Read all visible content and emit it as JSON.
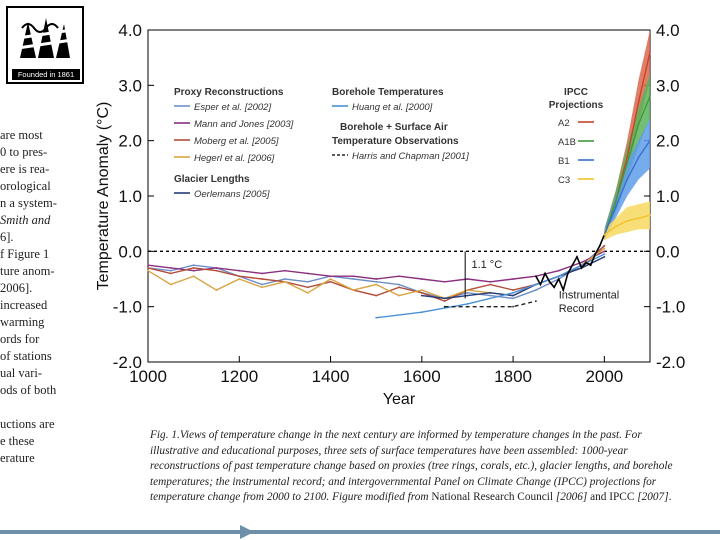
{
  "logo": {
    "caption": "Founded in 1861",
    "icon": "weather-vane-icon"
  },
  "left_text": {
    "lines": [
      {
        "text": "are most",
        "italic": false
      },
      {
        "text": "0 to pres-",
        "italic": false
      },
      {
        "text": "ere is rea-",
        "italic": false
      },
      {
        "text": "orological",
        "italic": false
      },
      {
        "text": "n a system-",
        "italic": false
      },
      {
        "text": "Smith and",
        "italic": true
      },
      {
        "text": "6].",
        "italic": false
      },
      {
        "text": "f Figure 1",
        "italic": false
      },
      {
        "text": "ture anom-",
        "italic": false
      },
      {
        "text": "2006].",
        "italic": false
      },
      {
        "text": "increased",
        "italic": false
      },
      {
        "text": "warming",
        "italic": false
      },
      {
        "text": "ords for",
        "italic": false
      },
      {
        "text": "of stations",
        "italic": false
      },
      {
        "text": "ual vari-",
        "italic": false
      },
      {
        "text": "ods of both",
        "italic": false
      },
      {
        "text": "",
        "italic": false
      },
      {
        "text": "uctions are",
        "italic": false
      },
      {
        "text": "e these",
        "italic": false
      },
      {
        "text": "erature",
        "italic": false
      }
    ]
  },
  "chart_data": {
    "type": "line",
    "xlabel": "Year",
    "ylabel": "Temperature Anomaly (°C)",
    "xlim": [
      1000,
      2100
    ],
    "ylim": [
      -2.0,
      4.0
    ],
    "x_ticks": [
      1000,
      1200,
      1400,
      1600,
      1800,
      2000
    ],
    "x_tick_labels": [
      "1000",
      "1200",
      "1400",
      "1600",
      "1800",
      "2000"
    ],
    "y_ticks": [
      4.0,
      3.0,
      2.0,
      1.0,
      0.0,
      -1.0,
      -2.0
    ],
    "y_tick_labels": [
      "4.0",
      "3.0",
      "2.0",
      "1.0",
      "0.0",
      "-1.0",
      "-2.0"
    ],
    "zero_line": true,
    "vertical_marker_x": 2100,
    "legend_groups": [
      {
        "title": "Proxy Reconstructions",
        "entries": [
          {
            "label": "Esper et al. [2002]",
            "color": "#6d8fc7"
          },
          {
            "label": "Mann and Jones [2003]",
            "color": "#8b2f7f"
          },
          {
            "label": "Moberg et al. [2005]",
            "color": "#b34d3a"
          },
          {
            "label": "Hegerl et al. [2006]",
            "color": "#d9a441"
          }
        ]
      },
      {
        "title": "Glacier Lengths",
        "entries": [
          {
            "label": "Oerlemans [2005]",
            "color": "#253d7a"
          }
        ]
      },
      {
        "title": "Borehole Temperatures",
        "entries": [
          {
            "label": "Huang et al. [2000]",
            "color": "#4a90d9"
          }
        ]
      },
      {
        "title": "Borehole + Surface Air Temperature Observations",
        "title_lines": [
          "Borehole + Surface Air",
          "Temperature Observations"
        ],
        "entries": [
          {
            "label": "Harris and Chapman [2001]",
            "color": "#222222",
            "dashed": true
          }
        ]
      },
      {
        "title": "IPCC Projections",
        "title_lines": [
          "IPCC",
          "Projections"
        ],
        "entries": [
          {
            "label": "A2",
            "color": "#c8442a"
          },
          {
            "label": "A1B",
            "color": "#3f9a3c"
          },
          {
            "label": "B1",
            "color": "#3b6fd1"
          },
          {
            "label": "C3",
            "color": "#f2c230"
          }
        ]
      }
    ],
    "annotations": [
      {
        "text": "1.1 °C",
        "x": 1700,
        "y": -0.15
      },
      {
        "text": "Instrumental Record",
        "lines": [
          "Instrumental",
          "Record"
        ],
        "x": 1890,
        "y": -0.75
      }
    ],
    "series": [
      {
        "name": "Esper et al. [2002]",
        "color": "#6d8fc7",
        "x": [
          1000,
          1050,
          1100,
          1150,
          1200,
          1250,
          1300,
          1350,
          1400,
          1450,
          1500,
          1550,
          1600,
          1650,
          1700,
          1750,
          1800,
          1850,
          1900,
          1950,
          2000
        ],
        "y": [
          -0.3,
          -0.35,
          -0.25,
          -0.3,
          -0.45,
          -0.6,
          -0.5,
          -0.55,
          -0.45,
          -0.5,
          -0.55,
          -0.6,
          -0.75,
          -0.85,
          -0.75,
          -0.8,
          -0.85,
          -0.7,
          -0.5,
          -0.25,
          0.1
        ]
      },
      {
        "name": "Mann and Jones [2003]",
        "color": "#8b2f7f",
        "x": [
          1000,
          1050,
          1100,
          1150,
          1200,
          1250,
          1300,
          1350,
          1400,
          1450,
          1500,
          1550,
          1600,
          1650,
          1700,
          1750,
          1800,
          1850,
          1900,
          1950,
          2000
        ],
        "y": [
          -0.25,
          -0.3,
          -0.35,
          -0.3,
          -0.35,
          -0.4,
          -0.35,
          -0.4,
          -0.45,
          -0.45,
          -0.5,
          -0.45,
          -0.5,
          -0.55,
          -0.5,
          -0.55,
          -0.5,
          -0.45,
          -0.35,
          -0.2,
          0.0
        ]
      },
      {
        "name": "Moberg et al. [2005]",
        "color": "#b34d3a",
        "x": [
          1000,
          1050,
          1100,
          1150,
          1200,
          1250,
          1300,
          1350,
          1400,
          1450,
          1500,
          1550,
          1600,
          1650,
          1700,
          1750,
          1800,
          1850,
          1900,
          1950,
          2000
        ],
        "y": [
          -0.3,
          -0.4,
          -0.3,
          -0.35,
          -0.45,
          -0.5,
          -0.55,
          -0.65,
          -0.55,
          -0.7,
          -0.8,
          -0.65,
          -0.75,
          -0.9,
          -0.7,
          -0.6,
          -0.7,
          -0.6,
          -0.45,
          -0.3,
          0.1
        ]
      },
      {
        "name": "Hegerl et al. [2006]",
        "color": "#d9a441",
        "x": [
          1000,
          1050,
          1100,
          1150,
          1200,
          1250,
          1300,
          1350,
          1400,
          1450,
          1500,
          1550,
          1600,
          1650,
          1700,
          1750,
          1800,
          1850,
          1900,
          1950,
          2000
        ],
        "y": [
          -0.35,
          -0.6,
          -0.45,
          -0.7,
          -0.5,
          -0.65,
          -0.55,
          -0.75,
          -0.5,
          -0.7,
          -0.6,
          -0.8,
          -0.7,
          -0.85,
          -0.7,
          -0.75,
          -0.8,
          -0.6,
          -0.45,
          -0.25,
          0.05
        ]
      },
      {
        "name": "Oerlemans [2005]",
        "color": "#253d7a",
        "x": [
          1600,
          1650,
          1700,
          1750,
          1800,
          1850,
          1900,
          1950,
          2000
        ],
        "y": [
          -0.8,
          -0.85,
          -0.8,
          -0.75,
          -0.8,
          -0.6,
          -0.45,
          -0.3,
          -0.1
        ]
      },
      {
        "name": "Huang et al. [2000]",
        "color": "#4a90d9",
        "x": [
          1500,
          1600,
          1700,
          1800,
          1900,
          2000
        ],
        "y": [
          -1.2,
          -1.1,
          -0.95,
          -0.75,
          -0.45,
          -0.05
        ]
      },
      {
        "name": "Harris and Chapman [2001]",
        "color": "#222222",
        "dashed": true,
        "x": [
          1650,
          1700,
          1750,
          1800,
          1850
        ],
        "y": [
          -1.0,
          -1.0,
          -1.0,
          -1.0,
          -0.9
        ]
      },
      {
        "name": "Instrumental Record",
        "color": "#000000",
        "x": [
          1850,
          1860,
          1870,
          1880,
          1890,
          1900,
          1910,
          1920,
          1930,
          1940,
          1950,
          1960,
          1970,
          1980,
          1990,
          2000
        ],
        "y": [
          -0.45,
          -0.6,
          -0.4,
          -0.55,
          -0.65,
          -0.5,
          -0.7,
          -0.4,
          -0.25,
          -0.1,
          -0.3,
          -0.2,
          -0.25,
          -0.05,
          0.1,
          0.3
        ]
      },
      {
        "name": "A2",
        "color": "#c8442a",
        "band_color": "#d9694f",
        "x": [
          2000,
          2025,
          2050,
          2075,
          2100
        ],
        "y": [
          0.3,
          0.9,
          1.7,
          2.7,
          3.6
        ],
        "lower": [
          0.2,
          0.7,
          1.4,
          2.3,
          3.1
        ],
        "upper": [
          0.4,
          1.1,
          2.0,
          3.1,
          4.0
        ]
      },
      {
        "name": "A1B",
        "color": "#3f9a3c",
        "band_color": "#5cb35a",
        "x": [
          2000,
          2025,
          2050,
          2075,
          2100
        ],
        "y": [
          0.3,
          0.9,
          1.6,
          2.3,
          2.8
        ],
        "lower": [
          0.2,
          0.7,
          1.3,
          1.9,
          2.4
        ],
        "upper": [
          0.4,
          1.1,
          1.9,
          2.6,
          3.2
        ]
      },
      {
        "name": "B1",
        "color": "#3b6fd1",
        "band_color": "#5e9ee8",
        "x": [
          2000,
          2025,
          2050,
          2075,
          2100
        ],
        "y": [
          0.3,
          0.8,
          1.3,
          1.7,
          2.0
        ],
        "lower": [
          0.2,
          0.6,
          1.0,
          1.3,
          1.5
        ],
        "upper": [
          0.4,
          1.0,
          1.6,
          2.0,
          2.4
        ]
      },
      {
        "name": "C3",
        "color": "#f2c230",
        "band_color": "#f7d85e",
        "x": [
          2000,
          2025,
          2050,
          2075,
          2100
        ],
        "y": [
          0.3,
          0.45,
          0.55,
          0.6,
          0.65
        ],
        "lower": [
          0.2,
          0.3,
          0.35,
          0.4,
          0.4
        ],
        "upper": [
          0.4,
          0.6,
          0.8,
          0.85,
          0.9
        ]
      }
    ]
  },
  "caption": {
    "label": "Fig. 1.",
    "italic_text": "Views of temperature change in the next century are informed by temperature changes in the past. For illustrative and educational purposes, three sets of surface temperatures have been assembled: 1000-year reconstructions of past temperature change based on proxies (tree rings, corals, etc.), glacier lengths, and borehole temperatures; the instrumental record; and intergovernmental Panel on Climate Change (IPCC) projections for temperature change from 2000 to 2100. Figure modified from",
    "normal_text": " National Research Council ",
    "italic_end_1": "[2006]",
    "normal_and": " and IPCC ",
    "italic_end_2": "[2007]",
    "period": "."
  }
}
